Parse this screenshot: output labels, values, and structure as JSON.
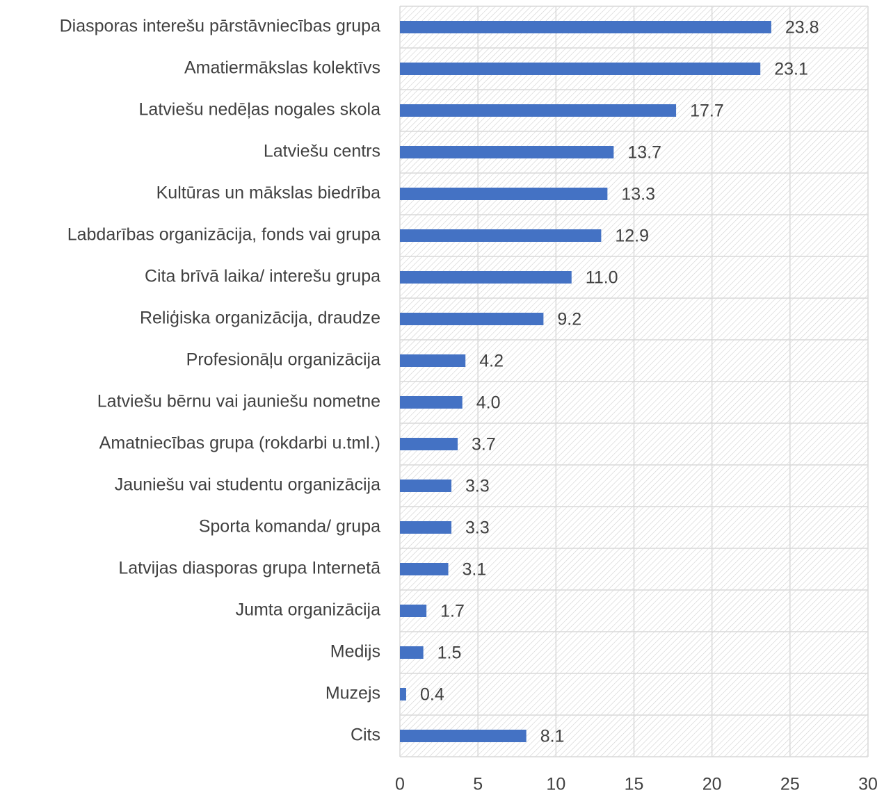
{
  "chart_data": {
    "type": "barh",
    "categories": [
      "Diasporas interešu pārstāvniecības grupa",
      "Amatiermākslas kolektīvs",
      "Latviešu nedēļas nogales skola",
      "Latviešu centrs",
      "Kultūras un mākslas biedrība",
      "Labdarības organizācija, fonds vai grupa",
      "Cita brīvā laika/ interešu grupa",
      "Reliģiska organizācija, draudze",
      "Profesionāļu organizācija",
      "Latviešu bērnu vai jauniešu nometne",
      "Amatniecības grupa (rokdarbi u.tml.)",
      "Jauniešu vai studentu organizācija",
      "Sporta komanda/ grupa",
      "Latvijas diasporas grupa Internetā",
      "Jumta organizācija",
      "Medijs",
      "Muzejs",
      "Cits"
    ],
    "values": [
      23.8,
      23.1,
      17.7,
      13.7,
      13.3,
      12.9,
      11.0,
      9.2,
      4.2,
      4.0,
      3.7,
      3.3,
      3.3,
      3.1,
      1.7,
      1.5,
      0.4,
      8.1
    ],
    "value_labels": [
      "23.8",
      "23.1",
      "17.7",
      "13.7",
      "13.3",
      "12.9",
      "11.0",
      "9.2",
      "4.2",
      "4.0",
      "3.7",
      "3.3",
      "3.3",
      "3.1",
      "1.7",
      "1.5",
      "0.4",
      "8.1"
    ],
    "color": "#4472c4",
    "xlim": [
      0,
      30
    ],
    "xticks": [
      0,
      5,
      10,
      15,
      20,
      25,
      30
    ],
    "grid": true
  }
}
